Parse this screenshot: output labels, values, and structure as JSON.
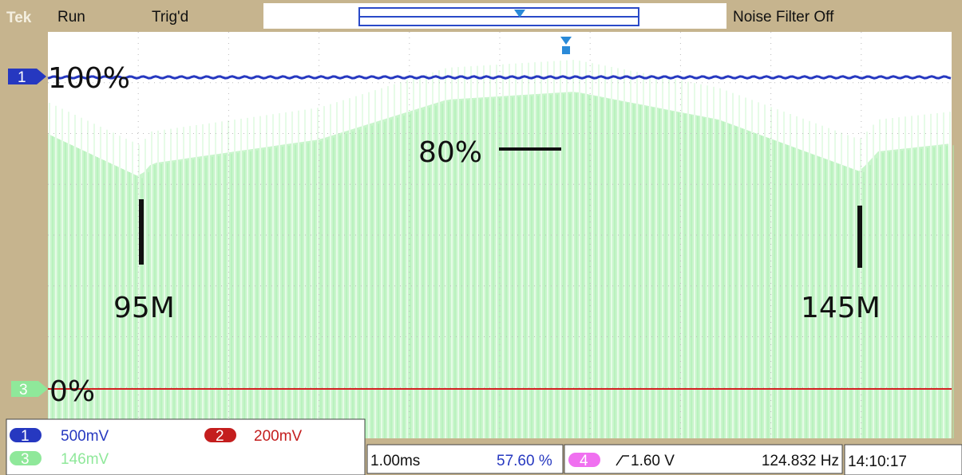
{
  "header": {
    "brand": "Tek",
    "state": "Run",
    "trigger": "Trig'd",
    "filter": "Noise Filter Off"
  },
  "markers": {
    "ch1": "1",
    "ch3": "3"
  },
  "annotations": {
    "top": "100%",
    "bottom": "0%",
    "level": "80%",
    "left": "95M",
    "right": "145M"
  },
  "channels": [
    {
      "label": "1",
      "scale": "500mV"
    },
    {
      "label": "2",
      "scale": "200mV"
    },
    {
      "label": "3",
      "scale": "146mV"
    }
  ],
  "timebase": {
    "scale": "1.00ms",
    "position": "57.60 %"
  },
  "trigger": {
    "source": "4",
    "level": "1.60 V",
    "frequency": "124.832 Hz"
  },
  "clock": "14:10:17"
}
